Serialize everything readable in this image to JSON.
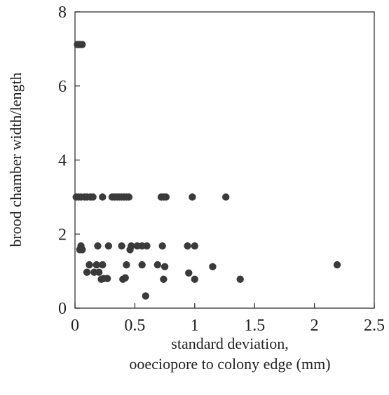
{
  "chart_data": {
    "type": "scatter",
    "title": "",
    "xlabel_lines": [
      "standard deviation,",
      "ooeciopore to colony edge (mm)"
    ],
    "ylabel": "brood chamber width/length",
    "xlim": [
      0,
      2.5
    ],
    "ylim": [
      0,
      8
    ],
    "xticks": [
      "0",
      "0.5",
      "1",
      "1.5",
      "2",
      "2.5"
    ],
    "yticks": [
      "0",
      "2",
      "4",
      "6",
      "8"
    ],
    "grid": false,
    "legend": "none",
    "point_color": "#3a3a3a",
    "points": [
      {
        "x": 0.02,
        "y": 7.12
      },
      {
        "x": 0.04,
        "y": 7.12
      },
      {
        "x": 0.06,
        "y": 7.12
      },
      {
        "x": 0.01,
        "y": 3.0
      },
      {
        "x": 0.03,
        "y": 3.0
      },
      {
        "x": 0.05,
        "y": 3.0
      },
      {
        "x": 0.08,
        "y": 3.0
      },
      {
        "x": 0.1,
        "y": 3.0
      },
      {
        "x": 0.13,
        "y": 3.0
      },
      {
        "x": 0.15,
        "y": 3.0
      },
      {
        "x": 0.23,
        "y": 3.0
      },
      {
        "x": 0.31,
        "y": 3.0
      },
      {
        "x": 0.33,
        "y": 3.0
      },
      {
        "x": 0.35,
        "y": 3.0
      },
      {
        "x": 0.37,
        "y": 3.0
      },
      {
        "x": 0.39,
        "y": 3.0
      },
      {
        "x": 0.41,
        "y": 3.0
      },
      {
        "x": 0.43,
        "y": 3.0
      },
      {
        "x": 0.45,
        "y": 3.0
      },
      {
        "x": 0.72,
        "y": 3.0
      },
      {
        "x": 0.74,
        "y": 3.0
      },
      {
        "x": 0.76,
        "y": 3.0
      },
      {
        "x": 0.98,
        "y": 3.0
      },
      {
        "x": 1.26,
        "y": 3.0
      },
      {
        "x": 0.05,
        "y": 1.68
      },
      {
        "x": 0.19,
        "y": 1.68
      },
      {
        "x": 0.28,
        "y": 1.68
      },
      {
        "x": 0.39,
        "y": 1.68
      },
      {
        "x": 0.47,
        "y": 1.68
      },
      {
        "x": 0.52,
        "y": 1.68
      },
      {
        "x": 0.56,
        "y": 1.68
      },
      {
        "x": 0.6,
        "y": 1.68
      },
      {
        "x": 0.73,
        "y": 1.68
      },
      {
        "x": 0.94,
        "y": 1.68
      },
      {
        "x": 1.0,
        "y": 1.68
      },
      {
        "x": 0.04,
        "y": 1.58
      },
      {
        "x": 0.06,
        "y": 1.58
      },
      {
        "x": 0.46,
        "y": 1.58
      },
      {
        "x": 0.12,
        "y": 1.17
      },
      {
        "x": 0.18,
        "y": 1.17
      },
      {
        "x": 0.23,
        "y": 1.17
      },
      {
        "x": 0.43,
        "y": 1.17
      },
      {
        "x": 0.56,
        "y": 1.17
      },
      {
        "x": 0.69,
        "y": 1.17
      },
      {
        "x": 0.75,
        "y": 1.12
      },
      {
        "x": 1.15,
        "y": 1.12
      },
      {
        "x": 2.19,
        "y": 1.17
      },
      {
        "x": 0.1,
        "y": 0.97
      },
      {
        "x": 0.16,
        "y": 0.97
      },
      {
        "x": 0.2,
        "y": 0.97
      },
      {
        "x": 0.95,
        "y": 0.95
      },
      {
        "x": 0.22,
        "y": 0.78
      },
      {
        "x": 0.24,
        "y": 0.8
      },
      {
        "x": 0.27,
        "y": 0.8
      },
      {
        "x": 0.4,
        "y": 0.78
      },
      {
        "x": 0.42,
        "y": 0.82
      },
      {
        "x": 0.74,
        "y": 0.78
      },
      {
        "x": 1.0,
        "y": 0.78
      },
      {
        "x": 1.38,
        "y": 0.78
      },
      {
        "x": 0.59,
        "y": 0.33
      }
    ]
  }
}
